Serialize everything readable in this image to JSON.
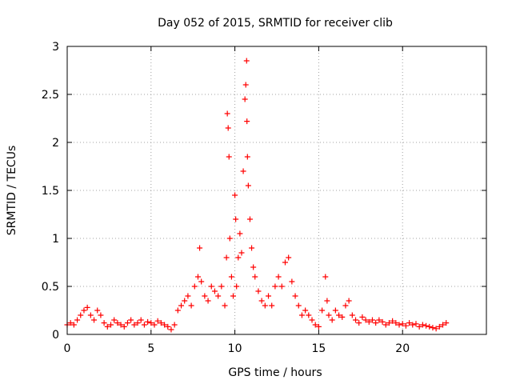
{
  "chart_data": {
    "type": "scatter",
    "title": "Day 052 of 2015, SRMTID for receiver clib",
    "xlabel": "GPS time / hours",
    "ylabel": "SRMTID / TECUs",
    "xlim": [
      0,
      25
    ],
    "ylim": [
      0,
      3
    ],
    "xticks": [
      0,
      5,
      10,
      15,
      20
    ],
    "xtick_labels": [
      "0",
      "5",
      "10",
      "15",
      "20"
    ],
    "yticks": [
      0,
      0.5,
      1,
      1.5,
      2,
      2.5,
      3
    ],
    "ytick_labels": [
      "0",
      "0.5",
      "1",
      "1.5",
      "2",
      "2.5",
      "3"
    ],
    "grid": true,
    "marker": "+",
    "color": "#ff0000",
    "series": [
      {
        "name": "SRMTID",
        "x": [
          0.0,
          0.2,
          0.4,
          0.6,
          0.8,
          1.0,
          1.2,
          1.4,
          1.6,
          1.8,
          2.0,
          2.2,
          2.4,
          2.6,
          2.8,
          3.0,
          3.2,
          3.4,
          3.6,
          3.8,
          4.0,
          4.2,
          4.4,
          4.6,
          4.8,
          5.0,
          5.2,
          5.4,
          5.6,
          5.8,
          6.0,
          6.2,
          6.4,
          6.6,
          6.8,
          7.0,
          7.2,
          7.4,
          7.6,
          7.8,
          7.9,
          8.0,
          8.2,
          8.4,
          8.6,
          8.8,
          9.0,
          9.2,
          9.4,
          9.5,
          9.55,
          9.6,
          9.65,
          9.7,
          9.8,
          9.9,
          10.0,
          10.05,
          10.1,
          10.2,
          10.3,
          10.4,
          10.5,
          10.6,
          10.65,
          10.7,
          10.72,
          10.75,
          10.8,
          10.9,
          11.0,
          11.1,
          11.2,
          11.4,
          11.6,
          11.8,
          12.0,
          12.2,
          12.4,
          12.6,
          12.8,
          13.0,
          13.2,
          13.4,
          13.6,
          13.8,
          14.0,
          14.2,
          14.4,
          14.6,
          14.8,
          15.0,
          15.2,
          15.4,
          15.5,
          15.6,
          15.8,
          16.0,
          16.2,
          16.4,
          16.6,
          16.8,
          17.0,
          17.2,
          17.4,
          17.6,
          17.8,
          18.0,
          18.2,
          18.4,
          18.6,
          18.8,
          19.0,
          19.2,
          19.4,
          19.6,
          19.8,
          20.0,
          20.2,
          20.4,
          20.6,
          20.8,
          21.0,
          21.2,
          21.4,
          21.6,
          21.8,
          22.0,
          22.2,
          22.4,
          22.6
        ],
        "values": [
          0.1,
          0.12,
          0.1,
          0.15,
          0.2,
          0.25,
          0.28,
          0.2,
          0.15,
          0.25,
          0.2,
          0.12,
          0.08,
          0.1,
          0.15,
          0.12,
          0.1,
          0.08,
          0.12,
          0.15,
          0.1,
          0.12,
          0.15,
          0.1,
          0.13,
          0.12,
          0.1,
          0.14,
          0.12,
          0.1,
          0.08,
          0.05,
          0.1,
          0.25,
          0.3,
          0.35,
          0.4,
          0.3,
          0.5,
          0.6,
          0.9,
          0.55,
          0.4,
          0.35,
          0.5,
          0.45,
          0.4,
          0.5,
          0.3,
          0.8,
          2.3,
          2.15,
          1.85,
          1.0,
          0.6,
          0.4,
          1.45,
          1.2,
          0.5,
          0.8,
          1.05,
          0.85,
          1.7,
          2.45,
          2.6,
          2.85,
          2.22,
          1.85,
          1.55,
          1.2,
          0.9,
          0.7,
          0.6,
          0.45,
          0.35,
          0.3,
          0.4,
          0.3,
          0.5,
          0.6,
          0.5,
          0.75,
          0.8,
          0.55,
          0.4,
          0.3,
          0.2,
          0.25,
          0.2,
          0.15,
          0.1,
          0.08,
          0.25,
          0.6,
          0.35,
          0.2,
          0.15,
          0.25,
          0.2,
          0.18,
          0.3,
          0.35,
          0.2,
          0.15,
          0.12,
          0.18,
          0.15,
          0.13,
          0.15,
          0.12,
          0.15,
          0.13,
          0.1,
          0.12,
          0.14,
          0.12,
          0.1,
          0.11,
          0.09,
          0.12,
          0.1,
          0.11,
          0.08,
          0.1,
          0.09,
          0.08,
          0.07,
          0.06,
          0.08,
          0.1,
          0.12
        ]
      }
    ]
  }
}
